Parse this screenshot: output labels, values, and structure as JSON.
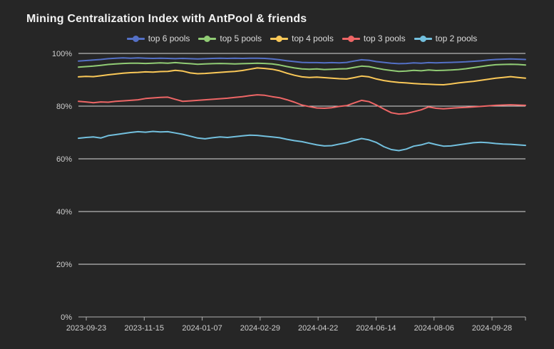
{
  "colors": {
    "background": "#262626",
    "title_text": "#f2f2f2",
    "legend_text": "#dcdcdc",
    "axis_label_text": "#cfcfcf",
    "gridline": "#d9d9d9",
    "axis_line": "#b0b0b0"
  },
  "chart_data": {
    "type": "line",
    "title": "Mining Centralization Index with AntPool & friends",
    "xlabel": "",
    "ylabel": "",
    "ylim": [
      0,
      100
    ],
    "grid": "horizontal-only",
    "legend_position": "top-center",
    "y_tick_values": [
      0,
      20,
      40,
      60,
      80,
      100
    ],
    "y_tick_labels": [
      "0%",
      "20%",
      "40%",
      "60%",
      "80%",
      "100%"
    ],
    "x_tick_labels": [
      "2023-09-23",
      "2023-11-15",
      "2024-01-07",
      "2024-02-29",
      "2024-04-22",
      "2024-06-14",
      "2024-08-06",
      "2024-09-28"
    ],
    "series": [
      {
        "name": "top 6 pools",
        "color": "#5470c6",
        "values": [
          97.1,
          97.3,
          97.5,
          97.7,
          98.0,
          98.2,
          98.3,
          98.2,
          98.3,
          98.2,
          98.1,
          98.2,
          98.1,
          98.0,
          98.1,
          98.0,
          97.9,
          98.0,
          98.1,
          98.2,
          98.1,
          98.2,
          98.1,
          98.2,
          98.2,
          98.1,
          97.9,
          97.6,
          97.2,
          96.9,
          96.6,
          96.5,
          96.5,
          96.4,
          96.5,
          96.4,
          96.6,
          97.1,
          97.6,
          97.4,
          96.9,
          96.6,
          96.3,
          96.1,
          96.2,
          96.4,
          96.3,
          96.5,
          96.4,
          96.5,
          96.6,
          96.7,
          96.8,
          97.0,
          97.2,
          97.5,
          97.7,
          97.8,
          97.9,
          97.8,
          97.7
        ]
      },
      {
        "name": "top 5 pools",
        "color": "#91cc75",
        "values": [
          94.8,
          95.0,
          95.2,
          95.5,
          95.8,
          96.0,
          96.2,
          96.3,
          96.3,
          96.2,
          96.3,
          96.4,
          96.3,
          96.5,
          96.3,
          96.1,
          95.9,
          96.0,
          96.1,
          96.2,
          96.1,
          96.0,
          96.1,
          96.2,
          96.3,
          96.2,
          96.0,
          95.6,
          95.0,
          94.5,
          94.1,
          94.0,
          94.1,
          93.9,
          94.0,
          94.1,
          94.2,
          94.7,
          95.2,
          95.0,
          94.4,
          93.9,
          93.5,
          93.2,
          93.3,
          93.6,
          93.4,
          93.7,
          93.5,
          93.6,
          93.7,
          93.9,
          94.2,
          94.6,
          95.0,
          95.4,
          95.7,
          95.8,
          95.9,
          95.8,
          95.6
        ]
      },
      {
        "name": "top 4 pools",
        "color": "#fac858",
        "values": [
          91.1,
          91.3,
          91.2,
          91.5,
          91.9,
          92.2,
          92.5,
          92.7,
          92.8,
          93.0,
          92.9,
          93.1,
          93.2,
          93.6,
          93.3,
          92.6,
          92.3,
          92.4,
          92.6,
          92.8,
          93.0,
          93.2,
          93.5,
          94.0,
          94.5,
          94.3,
          94.0,
          93.4,
          92.5,
          91.7,
          91.1,
          90.9,
          91.0,
          90.8,
          90.6,
          90.4,
          90.3,
          90.8,
          91.4,
          91.1,
          90.3,
          89.7,
          89.3,
          89.0,
          88.8,
          88.6,
          88.4,
          88.3,
          88.2,
          88.1,
          88.4,
          88.8,
          89.1,
          89.4,
          89.8,
          90.2,
          90.6,
          90.9,
          91.2,
          90.9,
          90.6
        ]
      },
      {
        "name": "top 3 pools",
        "color": "#ee6666",
        "values": [
          81.8,
          81.6,
          81.3,
          81.6,
          81.5,
          81.8,
          82.0,
          82.2,
          82.4,
          82.9,
          83.1,
          83.3,
          83.4,
          82.6,
          81.8,
          82.0,
          82.2,
          82.4,
          82.6,
          82.8,
          83.0,
          83.3,
          83.6,
          84.0,
          84.3,
          84.1,
          83.6,
          83.2,
          82.4,
          81.5,
          80.4,
          79.8,
          79.3,
          79.2,
          79.4,
          79.9,
          80.2,
          81.2,
          82.2,
          81.7,
          80.4,
          78.9,
          77.5,
          77.0,
          77.2,
          77.9,
          78.6,
          79.7,
          79.2,
          79.0,
          79.2,
          79.4,
          79.5,
          79.7,
          79.9,
          80.1,
          80.3,
          80.4,
          80.5,
          80.4,
          80.3
        ]
      },
      {
        "name": "top 2 pools",
        "color": "#73c0de",
        "values": [
          67.8,
          68.1,
          68.3,
          67.9,
          68.8,
          69.2,
          69.6,
          70.0,
          70.3,
          70.1,
          70.4,
          70.2,
          70.3,
          69.8,
          69.3,
          68.6,
          67.9,
          67.6,
          68.0,
          68.3,
          68.1,
          68.4,
          68.7,
          69.0,
          68.9,
          68.6,
          68.3,
          68.0,
          67.4,
          66.9,
          66.5,
          65.9,
          65.3,
          64.9,
          65.0,
          65.6,
          66.1,
          67.0,
          67.7,
          67.2,
          66.2,
          64.6,
          63.5,
          63.1,
          63.7,
          64.8,
          65.3,
          66.1,
          65.4,
          64.8,
          64.9,
          65.3,
          65.7,
          66.1,
          66.3,
          66.1,
          65.8,
          65.6,
          65.5,
          65.3,
          65.1
        ]
      }
    ]
  }
}
